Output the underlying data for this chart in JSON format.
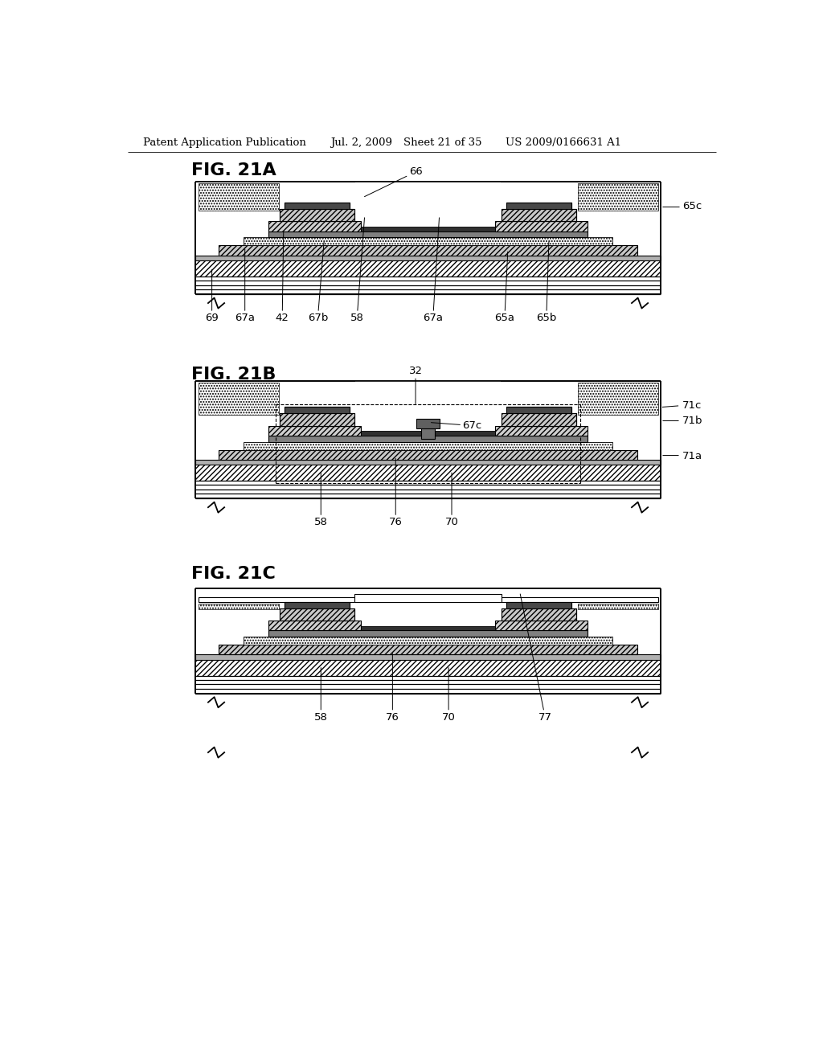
{
  "bg_color": "#ffffff",
  "header_left": "Patent Application Publication",
  "header_date": "Jul. 2, 2009",
  "header_sheet": "Sheet 21 of 35",
  "header_patent": "US 2009/0166631 A1",
  "fig21A_label": "FIG. 21A",
  "fig21B_label": "FIG. 21B",
  "fig21C_label": "FIG. 21C",
  "hatch_diag": "/////",
  "hatch_dot": ".....",
  "gray_light": "#d4d4d4",
  "gray_mid": "#a0a0a0",
  "gray_dark": "#505050",
  "black": "#000000",
  "white": "#ffffff"
}
